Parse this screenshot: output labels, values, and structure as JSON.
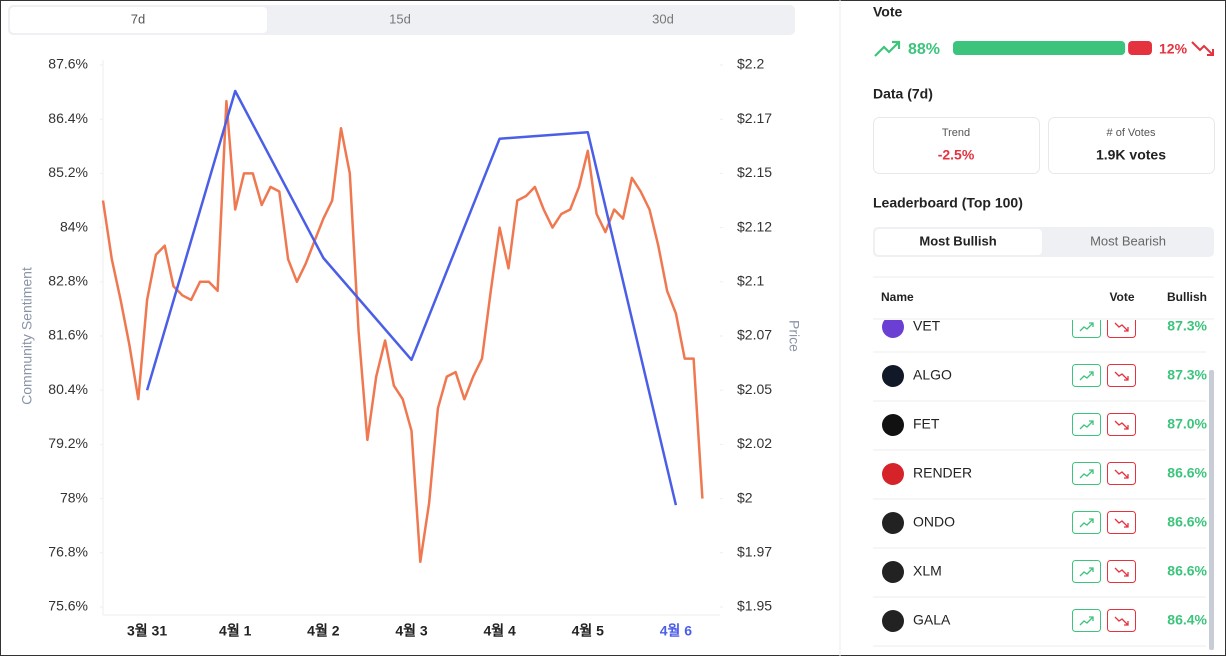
{
  "tabs": [
    "7d",
    "15d",
    "30d"
  ],
  "chart_data": {
    "type": "line",
    "categories": [
      "3월 31",
      "4월 1",
      "4월 2",
      "4월 3",
      "4월 4",
      "4월 5",
      "4월 6"
    ],
    "highlight_category": "4월 6",
    "xlim": [
      -0.5,
      6.5
    ],
    "ylabel": "Community Sentiment",
    "y2label": "Price",
    "ylim": [
      75.6,
      87.6
    ],
    "yticks": [
      {
        "value": 87.6,
        "label": "87.6%"
      },
      {
        "value": 86.4,
        "label": "86.4%"
      },
      {
        "value": 85.2,
        "label": "85.2%"
      },
      {
        "value": 84,
        "label": "84%"
      },
      {
        "value": 82.8,
        "label": "82.8%"
      },
      {
        "value": 81.6,
        "label": "81.6%"
      },
      {
        "value": 80.4,
        "label": "80.4%"
      },
      {
        "value": 79.2,
        "label": "79.2%"
      },
      {
        "value": 78,
        "label": "78%"
      },
      {
        "value": 76.8,
        "label": "76.8%"
      },
      {
        "value": 75.6,
        "label": "75.6%"
      }
    ],
    "y2lim": [
      1.95,
      2.2
    ],
    "y2ticks": [
      {
        "value": 2.2,
        "label": "$2.2"
      },
      {
        "value": 2.175,
        "label": "$2.17"
      },
      {
        "value": 2.15,
        "label": "$2.15"
      },
      {
        "value": 2.125,
        "label": "$2.12"
      },
      {
        "value": 2.1,
        "label": "$2.1"
      },
      {
        "value": 2.075,
        "label": "$2.07"
      },
      {
        "value": 2.05,
        "label": "$2.05"
      },
      {
        "value": 2.025,
        "label": "$2.02"
      },
      {
        "value": 2,
        "label": "$2"
      },
      {
        "value": 1.975,
        "label": "$1.97"
      },
      {
        "value": 1.95,
        "label": "$1.95"
      }
    ],
    "series": [
      {
        "name": "Community Sentiment",
        "color": "#f07850",
        "axis": "y",
        "x": [
          -0.5,
          -0.4,
          -0.3,
          -0.2,
          -0.1,
          0,
          0.1,
          0.2,
          0.3,
          0.4,
          0.5,
          0.6,
          0.7,
          0.8,
          0.9,
          1,
          1.1,
          1.2,
          1.3,
          1.4,
          1.5,
          1.6,
          1.7,
          1.8,
          1.9,
          2,
          2.1,
          2.2,
          2.3,
          2.4,
          2.5,
          2.6,
          2.7,
          2.8,
          2.9,
          3,
          3.1,
          3.2,
          3.3,
          3.4,
          3.5,
          3.6,
          3.7,
          3.8,
          3.9,
          4,
          4.1,
          4.2,
          4.3,
          4.4,
          4.5,
          4.6,
          4.7,
          4.8,
          4.9,
          5,
          5.1,
          5.2,
          5.3,
          5.4,
          5.5,
          5.6,
          5.7,
          5.8,
          5.9,
          6,
          6.1,
          6.2,
          6.3
        ],
        "values": [
          84.6,
          83.3,
          82.4,
          81.4,
          80.2,
          82.4,
          83.4,
          83.6,
          82.7,
          82.5,
          82.4,
          82.8,
          82.8,
          82.6,
          86.8,
          84.4,
          85.2,
          85.2,
          84.5,
          84.9,
          84.8,
          83.3,
          82.8,
          83.2,
          83.7,
          84.2,
          84.6,
          86.2,
          85.2,
          81.7,
          79.3,
          80.7,
          81.5,
          80.5,
          80.2,
          79.5,
          76.6,
          77.9,
          80.0,
          80.7,
          80.8,
          80.2,
          80.7,
          81.1,
          82.6,
          84.0,
          83.1,
          84.6,
          84.7,
          84.9,
          84.4,
          84.0,
          84.3,
          84.4,
          84.9,
          85.7,
          84.3,
          83.9,
          84.4,
          84.2,
          85.1,
          84.8,
          84.4,
          83.6,
          82.6,
          82.1,
          81.1,
          81.1,
          78.0
        ]
      },
      {
        "name": "Price",
        "color": "#4a5ee8",
        "axis": "y2",
        "values": [
          2.05,
          2.188,
          2.111,
          2.064,
          2.166,
          2.169,
          1.997
        ]
      }
    ]
  },
  "vote": {
    "title": "Vote",
    "values": [
      88,
      12
    ],
    "value_labels": [
      "88%",
      "12%"
    ]
  },
  "data7d": {
    "title": "Data (7d)",
    "cards": [
      {
        "label": "Trend",
        "value": "-2.5%"
      },
      {
        "label": "# of Votes",
        "value": "1.9K votes"
      }
    ]
  },
  "leaderboard": {
    "title": "Leaderboard (Top 100)",
    "toggles": [
      "Most Bullish",
      "Most Bearish"
    ],
    "columns": [
      "Name",
      "Vote",
      "Bullish"
    ],
    "rows": [
      {
        "name": "VET",
        "bullish": "87.3%"
      },
      {
        "name": "ALGO",
        "bullish": "87.3%"
      },
      {
        "name": "FET",
        "bullish": "87.0%"
      },
      {
        "name": "RENDER",
        "bullish": "86.6%"
      },
      {
        "name": "ONDO",
        "bullish": "86.6%"
      },
      {
        "name": "XLM",
        "bullish": "86.6%"
      },
      {
        "name": "GALA",
        "bullish": "86.4%"
      }
    ]
  }
}
